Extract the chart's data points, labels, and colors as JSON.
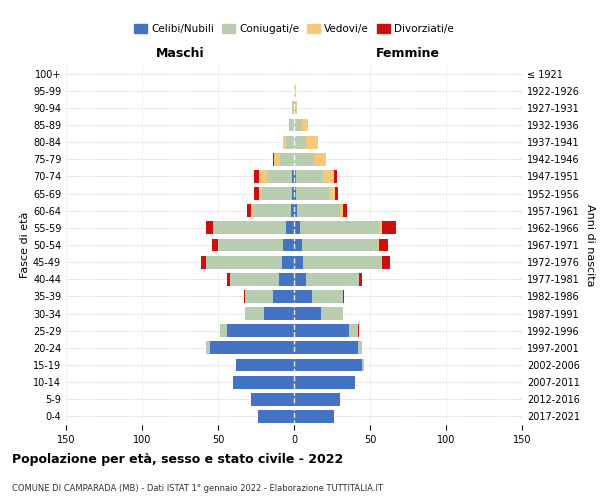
{
  "age_groups": [
    "0-4",
    "5-9",
    "10-14",
    "15-19",
    "20-24",
    "25-29",
    "30-34",
    "35-39",
    "40-44",
    "45-49",
    "50-54",
    "55-59",
    "60-64",
    "65-69",
    "70-74",
    "75-79",
    "80-84",
    "85-89",
    "90-94",
    "95-99",
    "100+"
  ],
  "birth_years": [
    "2017-2021",
    "2012-2016",
    "2007-2011",
    "2002-2006",
    "1997-2001",
    "1992-1996",
    "1987-1991",
    "1982-1986",
    "1977-1981",
    "1972-1976",
    "1967-1971",
    "1962-1966",
    "1957-1961",
    "1952-1956",
    "1947-1951",
    "1942-1946",
    "1937-1941",
    "1932-1936",
    "1927-1931",
    "1922-1926",
    "≤ 1921"
  ],
  "colors": {
    "celibi": "#4472C4",
    "coniugati": "#B8CCB0",
    "vedovi": "#F5C87A",
    "divorziati": "#CC1010"
  },
  "males": {
    "celibi": [
      24,
      28,
      40,
      38,
      55,
      44,
      20,
      14,
      10,
      8,
      7,
      5,
      2,
      1,
      1,
      0,
      0,
      0,
      0,
      0,
      0
    ],
    "coniugati": [
      0,
      0,
      0,
      0,
      3,
      5,
      12,
      18,
      32,
      50,
      43,
      48,
      25,
      20,
      17,
      9,
      5,
      3,
      1,
      0,
      0
    ],
    "vedovi": [
      0,
      0,
      0,
      0,
      0,
      0,
      0,
      0,
      0,
      0,
      0,
      0,
      1,
      2,
      5,
      4,
      2,
      0,
      0,
      0,
      0
    ],
    "divorziati": [
      0,
      0,
      0,
      0,
      0,
      0,
      0,
      1,
      2,
      3,
      4,
      5,
      3,
      3,
      3,
      1,
      0,
      0,
      0,
      0,
      0
    ]
  },
  "females": {
    "nubili": [
      26,
      30,
      40,
      45,
      42,
      36,
      18,
      12,
      8,
      6,
      5,
      4,
      2,
      1,
      1,
      0,
      0,
      0,
      0,
      0,
      0
    ],
    "coniugate": [
      0,
      0,
      0,
      1,
      3,
      6,
      14,
      20,
      35,
      52,
      50,
      52,
      28,
      22,
      18,
      13,
      8,
      5,
      1,
      0,
      0
    ],
    "vedove": [
      0,
      0,
      0,
      0,
      0,
      0,
      0,
      0,
      0,
      0,
      1,
      2,
      2,
      4,
      7,
      8,
      8,
      4,
      1,
      1,
      0
    ],
    "divorziate": [
      0,
      0,
      0,
      0,
      0,
      1,
      0,
      1,
      2,
      5,
      6,
      9,
      3,
      2,
      2,
      0,
      0,
      0,
      0,
      0,
      0
    ]
  },
  "xlim": 150,
  "title": "Popolazione per età, sesso e stato civile - 2022",
  "subtitle": "COMUNE DI CAMPARADA (MB) - Dati ISTAT 1° gennaio 2022 - Elaborazione TUTTITALIA.IT",
  "ylabel_left": "Fasce di età",
  "ylabel_right": "Anni di nascita",
  "xlabel_male": "Maschi",
  "xlabel_female": "Femmine",
  "legend_labels": [
    "Celibi/Nubili",
    "Coniugati/e",
    "Vedovi/e",
    "Divorziati/e"
  ],
  "bg_color": "#FFFFFF",
  "grid_color": "#CCCCCC"
}
